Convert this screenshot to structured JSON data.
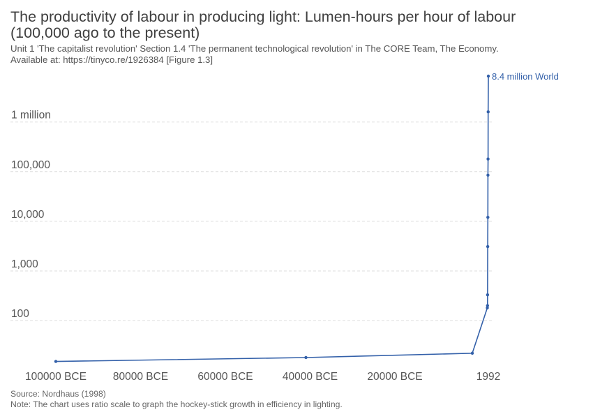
{
  "header": {
    "title": "The productivity of labour in producing light: Lumen-hours per hour of labour (100,000 ago to the present)",
    "subtitle_line1": "Unit 1 'The capitalist revolution' Section 1.4 'The permanent technological revolution' in The CORE Team, The Economy.",
    "subtitle_line2": "Available at: https://tinyco.re/1926384 [Figure 1.3]"
  },
  "footer": {
    "source": "Source: Nordhaus (1998)",
    "note": "Note: The chart uses ratio scale to graph the hockey-stick growth in efficiency in lighting."
  },
  "colors": {
    "series": "#3360a9",
    "grid": "#dddddd",
    "axis_text": "#555555"
  },
  "chart_data": {
    "type": "line",
    "y_scale": "log",
    "grid": "horizontal dashed",
    "legend": "end-of-line label",
    "ylim": [
      13,
      8400000
    ],
    "xlim": [
      -100000,
      1992
    ],
    "y_ticks": [
      {
        "value": 100,
        "label": "100"
      },
      {
        "value": 1000,
        "label": "1,000"
      },
      {
        "value": 10000,
        "label": "10,000"
      },
      {
        "value": 100000,
        "label": "100,000"
      },
      {
        "value": 1000000,
        "label": "1 million"
      }
    ],
    "x_ticks": [
      {
        "value": -100000,
        "label": "100000 BCE"
      },
      {
        "value": -80000,
        "label": "80000 BCE"
      },
      {
        "value": -60000,
        "label": "60000 BCE"
      },
      {
        "value": -40000,
        "label": "40000 BCE"
      },
      {
        "value": -20000,
        "label": "20000 BCE"
      },
      {
        "value": 1992,
        "label": "1992"
      }
    ],
    "series": [
      {
        "name": "World",
        "end_label": "8.4 million World",
        "points": [
          {
            "x": -100000,
            "y": 15
          },
          {
            "x": -41000,
            "y": 18
          },
          {
            "x": -1750,
            "y": 22
          },
          {
            "x": 1750,
            "y": 180
          },
          {
            "x": 1800,
            "y": 200
          },
          {
            "x": 1810,
            "y": 330
          },
          {
            "x": 1850,
            "y": 3100
          },
          {
            "x": 1880,
            "y": 12000
          },
          {
            "x": 1900,
            "y": 85000
          },
          {
            "x": 1920,
            "y": 180000
          },
          {
            "x": 1950,
            "y": 1600000
          },
          {
            "x": 1992,
            "y": 8400000
          }
        ]
      }
    ]
  }
}
